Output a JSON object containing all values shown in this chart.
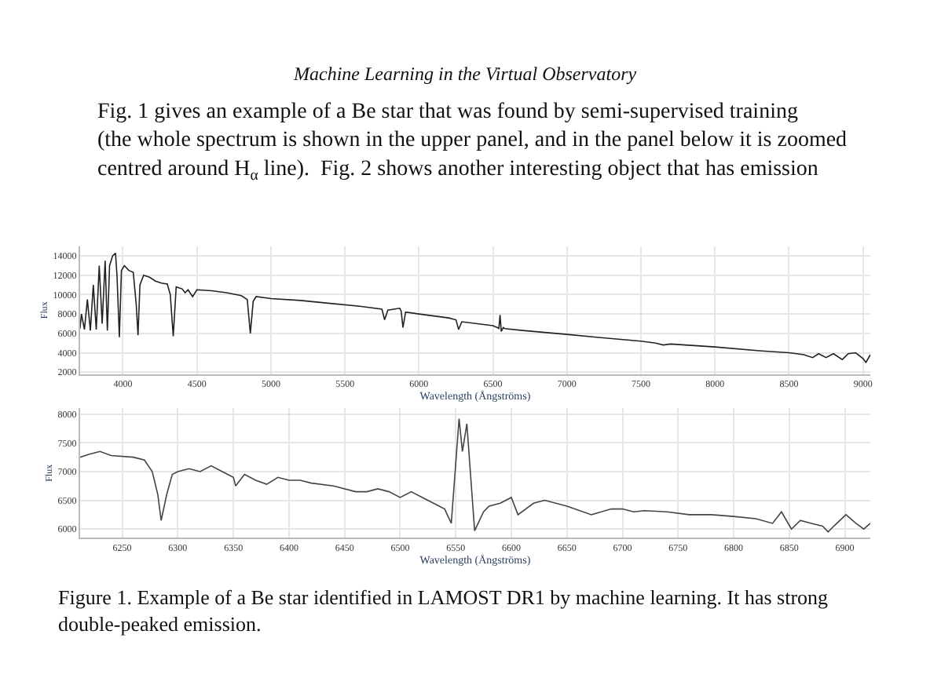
{
  "chart_data": [
    {
      "type": "line",
      "xlabel": "Wavelength (Ångströms)",
      "ylabel": "Flux",
      "grid": true,
      "marker": "none",
      "line_style": "solid",
      "annotations": [
        "Machine Learning in the Virtual Observatory",
        "Fig. 1 gives an example of a Be star that was found by semi-supervised training\n(the whole spectrum is shown in the upper panel, and in the panel below it is zoomed\ncentred around H$_{α}$ line).  Fig. 2 shows another interesting object that has emission"
      ],
      "xlim": [
        3710,
        9050
      ],
      "xticks": [
        4000,
        4500,
        5000,
        5500,
        6000,
        6500,
        7000,
        7500,
        8000,
        8500,
        9000
      ],
      "ylim": [
        1800,
        15000
      ],
      "yticks": [
        2000,
        4000,
        6000,
        8000,
        10000,
        12000,
        14000
      ],
      "x": [
        3710,
        3720,
        3740,
        3760,
        3780,
        3800,
        3820,
        3840,
        3860,
        3880,
        3895,
        3910,
        3930,
        3950,
        3960,
        3976,
        3990,
        4010,
        4040,
        4070,
        4090,
        4102,
        4115,
        4140,
        4180,
        4220,
        4260,
        4300,
        4320,
        4340,
        4360,
        4400,
        4420,
        4440,
        4471,
        4500,
        4600,
        4700,
        4800,
        4840,
        4861,
        4880,
        4900,
        5000,
        5200,
        5400,
        5600,
        5750,
        5768,
        5790,
        5870,
        5880,
        5892,
        5910,
        6000,
        6200,
        6250,
        6268,
        6290,
        6500,
        6530,
        6540,
        6548,
        6556,
        6570,
        6580,
        6700,
        7000,
        7200,
        7500,
        7600,
        7650,
        7700,
        8000,
        8300,
        8500,
        8600,
        8660,
        8700,
        8750,
        8800,
        8860,
        8900,
        8950,
        9000,
        9020,
        9050
      ],
      "series": [
        {
          "color": "#222222",
          "values": [
            6500,
            8000,
            6400,
            9500,
            6300,
            11000,
            6400,
            13000,
            7000,
            13500,
            6300,
            13000,
            14000,
            14300,
            12000,
            5600,
            12500,
            13000,
            12500,
            12300,
            9000,
            5800,
            11000,
            12000,
            11800,
            11400,
            11200,
            11100,
            10000,
            5700,
            10800,
            10600,
            10200,
            10500,
            9800,
            10500,
            10400,
            10200,
            9900,
            9500,
            6000,
            9300,
            9800,
            9600,
            9400,
            9100,
            8800,
            8500,
            7400,
            8400,
            8600,
            8300,
            6600,
            8200,
            8000,
            7600,
            7400,
            6400,
            7200,
            6800,
            6600,
            6500,
            7900,
            6200,
            6600,
            6500,
            6300,
            5900,
            5600,
            5200,
            5000,
            4800,
            4900,
            4600,
            4200,
            4000,
            3800,
            3500,
            3900,
            3500,
            3900,
            3300,
            3900,
            4000,
            3400,
            3000,
            3800
          ]
        }
      ]
    },
    {
      "type": "line",
      "xlabel": "Wavelength (Ångströms)",
      "ylabel": "Flux",
      "grid": true,
      "marker": "none",
      "line_style": "solid",
      "annotations": [
        "Figure 1. Example of a Be star identified in LAMOST DR1 by machine learning. It has strong\ndouble-peaked emission."
      ],
      "xlim": [
        6212,
        6923
      ],
      "xticks": [
        6250,
        6300,
        6350,
        6400,
        6450,
        6500,
        6550,
        6600,
        6650,
        6700,
        6750,
        6800,
        6850,
        6900
      ],
      "ylim": [
        5850,
        8100
      ],
      "yticks": [
        6000,
        6500,
        7000,
        7500,
        8000
      ],
      "x": [
        6212,
        6220,
        6230,
        6240,
        6260,
        6270,
        6277,
        6282,
        6285,
        6290,
        6295,
        6300,
        6310,
        6320,
        6330,
        6340,
        6350,
        6352,
        6360,
        6370,
        6380,
        6390,
        6400,
        6410,
        6420,
        6440,
        6460,
        6470,
        6480,
        6490,
        6500,
        6510,
        6520,
        6530,
        6540,
        6546,
        6553,
        6556,
        6560,
        6567,
        6575,
        6580,
        6590,
        6600,
        6606,
        6620,
        6630,
        6650,
        6672,
        6690,
        6700,
        6710,
        6720,
        6740,
        6760,
        6780,
        6800,
        6820,
        6835,
        6843,
        6852,
        6860,
        6870,
        6880,
        6885,
        6890,
        6901,
        6910,
        6917,
        6923
      ],
      "series": [
        {
          "color": "#444444",
          "values": [
            7250,
            7300,
            7350,
            7280,
            7250,
            7200,
            7000,
            6600,
            6150,
            6600,
            6950,
            7000,
            7050,
            7000,
            7100,
            7000,
            6900,
            6750,
            6950,
            6850,
            6780,
            6900,
            6850,
            6850,
            6800,
            6750,
            6650,
            6650,
            6700,
            6650,
            6550,
            6650,
            6550,
            6450,
            6350,
            6100,
            7920,
            7350,
            7830,
            5970,
            6300,
            6400,
            6450,
            6550,
            6250,
            6450,
            6500,
            6400,
            6250,
            6350,
            6350,
            6300,
            6320,
            6300,
            6250,
            6250,
            6220,
            6180,
            6100,
            6300,
            6000,
            6150,
            6100,
            6050,
            5950,
            6050,
            6250,
            6100,
            6000,
            6100
          ]
        }
      ]
    }
  ]
}
